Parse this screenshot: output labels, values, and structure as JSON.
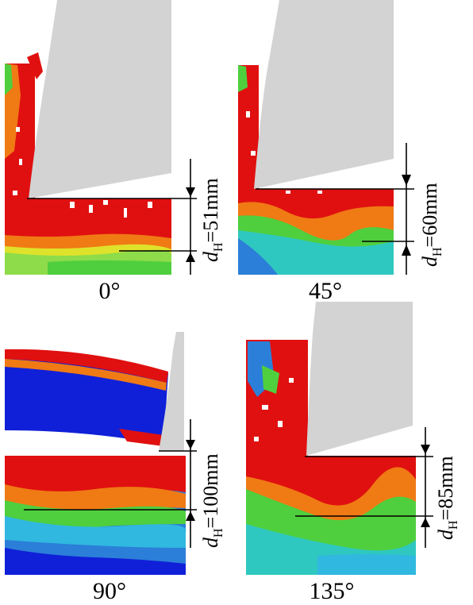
{
  "panels": [
    {
      "id": "p0",
      "angle_label": "0°",
      "dim_symbol": "d",
      "dim_subscript": "H",
      "dim_value": "=51mm",
      "depth_mm": 51
    },
    {
      "id": "p45",
      "angle_label": "45°",
      "dim_symbol": "d",
      "dim_subscript": "H",
      "dim_value": "=60mm",
      "depth_mm": 60
    },
    {
      "id": "p90",
      "angle_label": "90°",
      "dim_symbol": "d",
      "dim_subscript": "H",
      "dim_value": "=100mm",
      "depth_mm": 100
    },
    {
      "id": "p135",
      "angle_label": "135°",
      "dim_symbol": "d",
      "dim_subscript": "H",
      "dim_value": "=85mm",
      "depth_mm": 85
    }
  ],
  "colors": {
    "tool": "#d3d3d3",
    "high": "#e01010",
    "orange": "#f07a14",
    "yellow": "#dfe22a",
    "green": "#4fcf3e",
    "lightgreen": "#8edc4a",
    "teal": "#2fc8c0",
    "cyan": "#30b8e0",
    "blue": "#2b7fd8",
    "deepblue": "#1020d8"
  }
}
